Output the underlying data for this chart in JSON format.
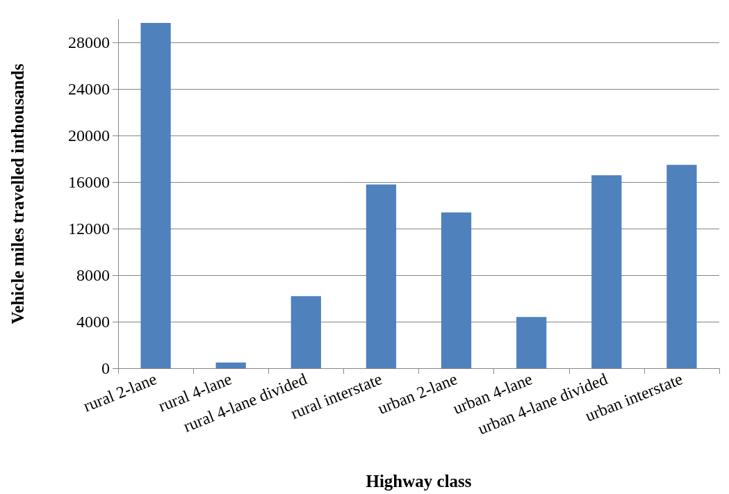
{
  "chart_data": {
    "type": "bar",
    "xlabel": "Highway class",
    "ylabel": "Vehicle miles travelled inthousands",
    "categories": [
      "rural 2-lane",
      "rural 4-lane",
      "rural 4-lane divided",
      "rural interstate",
      "urban 2-lane",
      "urban 4-lane",
      "urban 4-lane divided",
      "urban interstate"
    ],
    "values": [
      29700,
      500,
      6200,
      15800,
      13400,
      4400,
      16600,
      17500
    ],
    "color": "#4f81bd",
    "ylim": [
      0,
      30000
    ],
    "yticks": [
      0,
      4000,
      8000,
      12000,
      16000,
      20000,
      24000,
      28000
    ],
    "grid": "y"
  }
}
